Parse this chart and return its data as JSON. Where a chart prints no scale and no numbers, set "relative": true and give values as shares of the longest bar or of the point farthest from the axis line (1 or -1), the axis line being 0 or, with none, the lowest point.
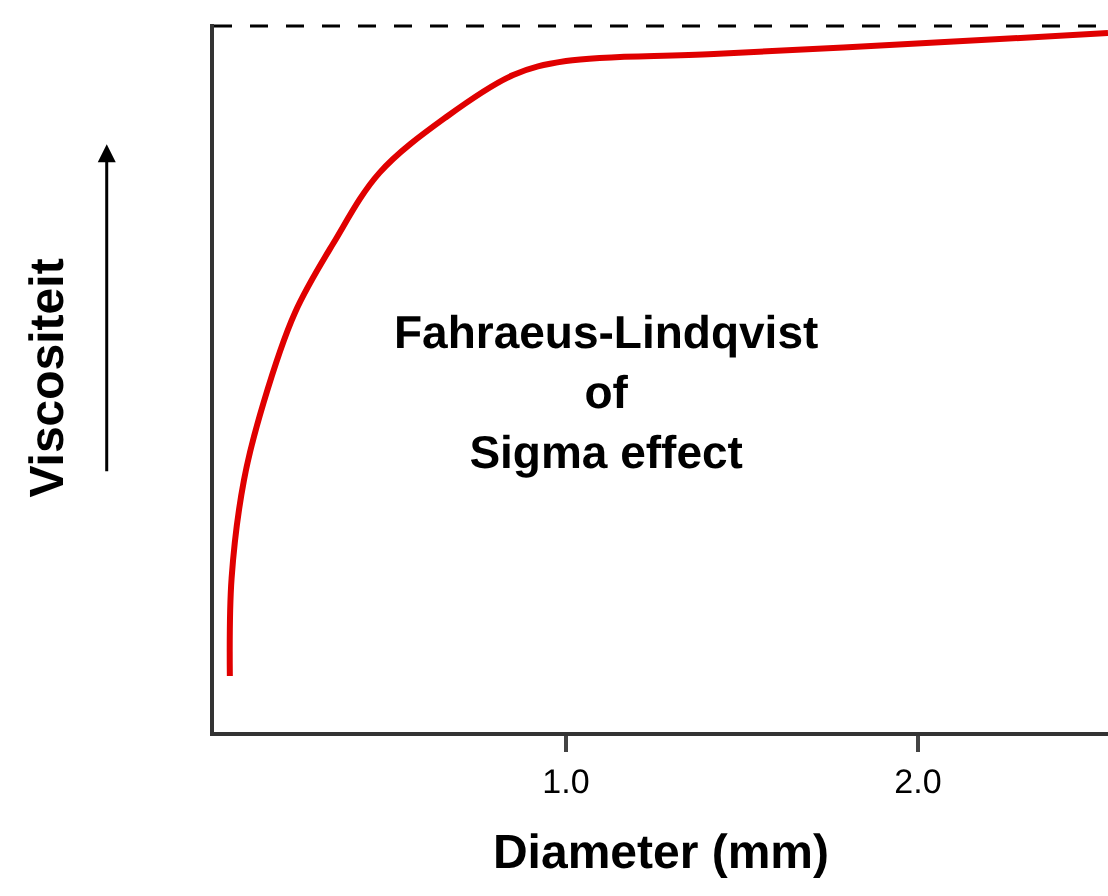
{
  "chart_data": {
    "type": "line",
    "xlabel": "Diameter (mm)",
    "ylabel": "Viscositeit",
    "relative": true,
    "x": [
      0.045,
      0.05,
      0.085,
      0.14,
      0.23,
      0.34,
      0.47,
      0.66,
      0.85,
      1.0,
      1.42,
      2.18,
      2.54
    ],
    "series": [
      {
        "color": "#e00000",
        "values": [
          0.08,
          0.22,
          0.36,
          0.47,
          0.6,
          0.7,
          0.8,
          0.88,
          0.94,
          0.96,
          0.97,
          0.99,
          1.0
        ]
      }
    ],
    "xlim": [
      0,
      2.54
    ],
    "xticks": [
      {
        "value": 1,
        "label": "1.0"
      },
      {
        "value": 2,
        "label": "2.0"
      }
    ],
    "ref_lines": [
      {
        "axis": "y",
        "value": 1.01,
        "color": "#000000",
        "line_style": "dashed"
      }
    ],
    "annotations": [
      "Fahraeus-Lindqvist\nof\nSigma effect"
    ],
    "marker": "none",
    "line_style": "solid"
  }
}
